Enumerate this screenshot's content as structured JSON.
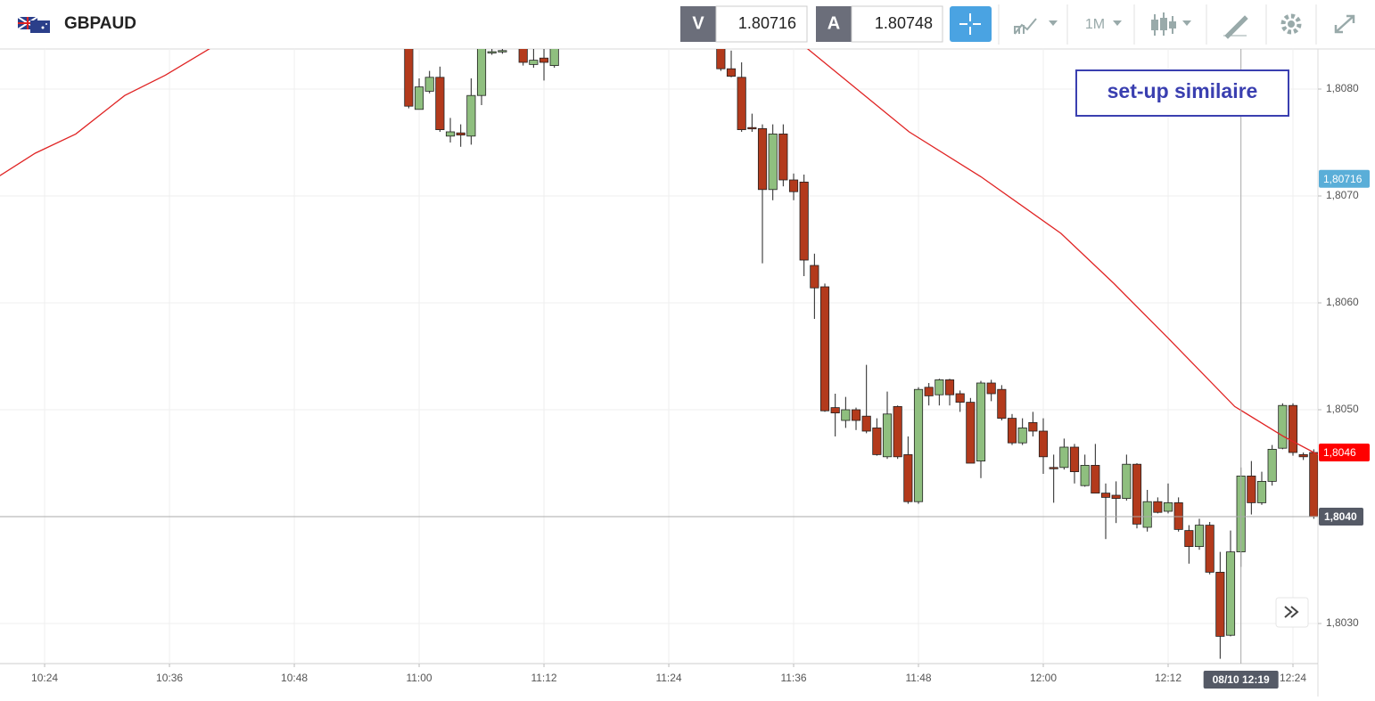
{
  "toolbar": {
    "symbol": "GBPAUD",
    "bid_label": "V",
    "bid": "1.80716",
    "ask_label": "A",
    "ask": "1.80748",
    "timeframe": "1M"
  },
  "chart_data": {
    "type": "candlestick",
    "annotation": "set-up similaire",
    "x": [
      659,
      660,
      661,
      662,
      663,
      664,
      665,
      666,
      667,
      668,
      670,
      671,
      672,
      673,
      689,
      690,
      691,
      692,
      693,
      694,
      695,
      696,
      697,
      698,
      699,
      700,
      701,
      702,
      703,
      704,
      705,
      706,
      707,
      708,
      709,
      710,
      711,
      712,
      713,
      714,
      715,
      716,
      717,
      718,
      719,
      720,
      721,
      722,
      723,
      724,
      725,
      726,
      727,
      728,
      729,
      730,
      731,
      732,
      733,
      734,
      735,
      736,
      737,
      738,
      739,
      740,
      741,
      742,
      743,
      744,
      745,
      746
    ],
    "open": [
      1.80845,
      1.80781,
      1.80798,
      1.80811,
      1.80756,
      1.80759,
      1.80756,
      1.80794,
      1.80834,
      1.80835,
      1.8084,
      1.80823,
      1.80829,
      1.80822,
      1.8084,
      1.80819,
      1.80811,
      1.80764,
      1.80763,
      1.80706,
      1.80758,
      1.80715,
      1.80713,
      1.80635,
      1.80615,
      1.80502,
      1.8049,
      1.805,
      1.80494,
      1.80483,
      1.80456,
      1.80503,
      1.80458,
      1.80414,
      1.80521,
      1.80514,
      1.80528,
      1.80515,
      1.80507,
      1.80452,
      1.80525,
      1.80519,
      1.80492,
      1.80469,
      1.80488,
      1.8048,
      1.80446,
      1.80446,
      1.80465,
      1.80429,
      1.80448,
      1.80422,
      1.8042,
      1.80417,
      1.80449,
      1.8039,
      1.80414,
      1.80405,
      1.80413,
      1.80387,
      1.80372,
      1.80392,
      1.80348,
      1.80289,
      1.80367,
      1.80438,
      1.80413,
      1.80433,
      1.80464,
      1.80504,
      1.80458,
      1.8046
    ],
    "high": [
      1.8086,
      1.8081,
      1.80817,
      1.80821,
      1.80773,
      1.80767,
      1.8081,
      1.8086,
      1.8084,
      1.8084,
      1.8085,
      1.8084,
      1.8084,
      1.8085,
      1.8085,
      1.80836,
      1.80825,
      1.80777,
      1.80767,
      1.80767,
      1.80767,
      1.80721,
      1.8072,
      1.80646,
      1.80618,
      1.80515,
      1.80512,
      1.80502,
      1.80542,
      1.80492,
      1.80517,
      1.80504,
      1.80475,
      1.80521,
      1.80525,
      1.80529,
      1.80529,
      1.80518,
      1.80511,
      1.80527,
      1.80528,
      1.80523,
      1.80496,
      1.80492,
      1.80498,
      1.80492,
      1.80458,
      1.80473,
      1.80468,
      1.80458,
      1.80468,
      1.80431,
      1.80433,
      1.80458,
      1.8045,
      1.80425,
      1.80418,
      1.80431,
      1.80418,
      1.80392,
      1.80398,
      1.80395,
      1.80367,
      1.80387,
      1.80446,
      1.80452,
      1.80442,
      1.80467,
      1.80506,
      1.80506,
      1.8046,
      1.80463
    ],
    "low": [
      1.80782,
      1.80781,
      1.80796,
      1.8076,
      1.8075,
      1.80746,
      1.80748,
      1.80785,
      1.80832,
      1.80833,
      1.80822,
      1.8082,
      1.80808,
      1.8082,
      1.80817,
      1.80811,
      1.8076,
      1.8076,
      1.80637,
      1.80696,
      1.80709,
      1.80696,
      1.80625,
      1.80585,
      1.80498,
      1.80475,
      1.80483,
      1.80481,
      1.80478,
      1.80457,
      1.80454,
      1.80454,
      1.80412,
      1.80412,
      1.80504,
      1.80504,
      1.80504,
      1.80498,
      1.8045,
      1.80436,
      1.80508,
      1.8049,
      1.80467,
      1.80467,
      1.80475,
      1.8044,
      1.80413,
      1.80444,
      1.80431,
      1.80428,
      1.80422,
      1.80379,
      1.80394,
      1.80415,
      1.80389,
      1.80386,
      1.80403,
      1.80403,
      1.80386,
      1.80356,
      1.80369,
      1.80346,
      1.80267,
      1.80288,
      1.80353,
      1.80402,
      1.80411,
      1.80429,
      1.80463,
      1.80457,
      1.80453,
      1.80398
    ],
    "close": [
      1.80784,
      1.80802,
      1.80811,
      1.80762,
      1.8076,
      1.80757,
      1.80794,
      1.8085,
      1.80835,
      1.80836,
      1.80825,
      1.80827,
      1.80825,
      1.8084,
      1.80819,
      1.80812,
      1.80762,
      1.80763,
      1.80706,
      1.80758,
      1.80715,
      1.80704,
      1.8064,
      1.80614,
      1.80499,
      1.80497,
      1.805,
      1.8049,
      1.8048,
      1.80458,
      1.80496,
      1.80456,
      1.80414,
      1.80519,
      1.80513,
      1.80528,
      1.80514,
      1.80507,
      1.8045,
      1.80525,
      1.80515,
      1.80492,
      1.80469,
      1.80483,
      1.8048,
      1.80456,
      1.80445,
      1.80465,
      1.80442,
      1.80448,
      1.80422,
      1.80418,
      1.80417,
      1.80449,
      1.80393,
      1.80414,
      1.80404,
      1.80413,
      1.80388,
      1.80372,
      1.80392,
      1.80348,
      1.80288,
      1.80367,
      1.80438,
      1.80413,
      1.80433,
      1.80463,
      1.80504,
      1.8046,
      1.80456,
      1.804
    ],
    "up_color": "#8fbf7f",
    "down_color": "#b33a1c",
    "moving_average": {
      "color": "#e02424",
      "x": [
        619.7,
        623.1,
        627.0,
        631.7,
        635.6,
        639.9,
        null,
        697.3,
        707.1,
        714.0,
        721.7,
        726.8,
        732.0,
        738.4,
        743.1,
        746.4
      ],
      "values": [
        1.80719,
        1.8074,
        1.80758,
        1.80794,
        1.80813,
        1.80838,
        null,
        1.80838,
        1.8076,
        1.80718,
        1.80665,
        1.80618,
        1.80567,
        1.80503,
        1.80475,
        1.80458
      ]
    },
    "xlim": [
      619.71,
      746.4
    ],
    "xticks": [
      {
        "value": 624,
        "label": "10:24"
      },
      {
        "value": 636,
        "label": "10:36"
      },
      {
        "value": 648,
        "label": "10:48"
      },
      {
        "value": 660,
        "label": "11:00"
      },
      {
        "value": 672,
        "label": "11:12"
      },
      {
        "value": 684,
        "label": "11:24"
      },
      {
        "value": 696,
        "label": "11:36"
      },
      {
        "value": 708,
        "label": "11:48"
      },
      {
        "value": 720,
        "label": "12:00"
      },
      {
        "value": 732,
        "label": "12:12"
      },
      {
        "value": 744,
        "label": "12:24"
      }
    ],
    "ylim": [
      1.802625,
      1.808375
    ],
    "yticks": [
      {
        "value": 1.803,
        "label": "1,8030"
      },
      {
        "value": 1.805,
        "label": "1,8050"
      },
      {
        "value": 1.806,
        "label": "1,8060"
      },
      {
        "value": 1.807,
        "label": "1,8070"
      },
      {
        "value": 1.808,
        "label": "1,8080"
      }
    ],
    "grid": true,
    "price_markers": [
      {
        "value": 1.80716,
        "label": "1,80716",
        "color": "#5aaed8"
      },
      {
        "value": 1.8046,
        "label": "1,8046",
        "color": "#ff0000"
      }
    ],
    "crosshair": {
      "value": 1.804,
      "label": "1,8040",
      "x": 739,
      "x_label": "08/10 12:19",
      "color": "#555a66"
    }
  }
}
